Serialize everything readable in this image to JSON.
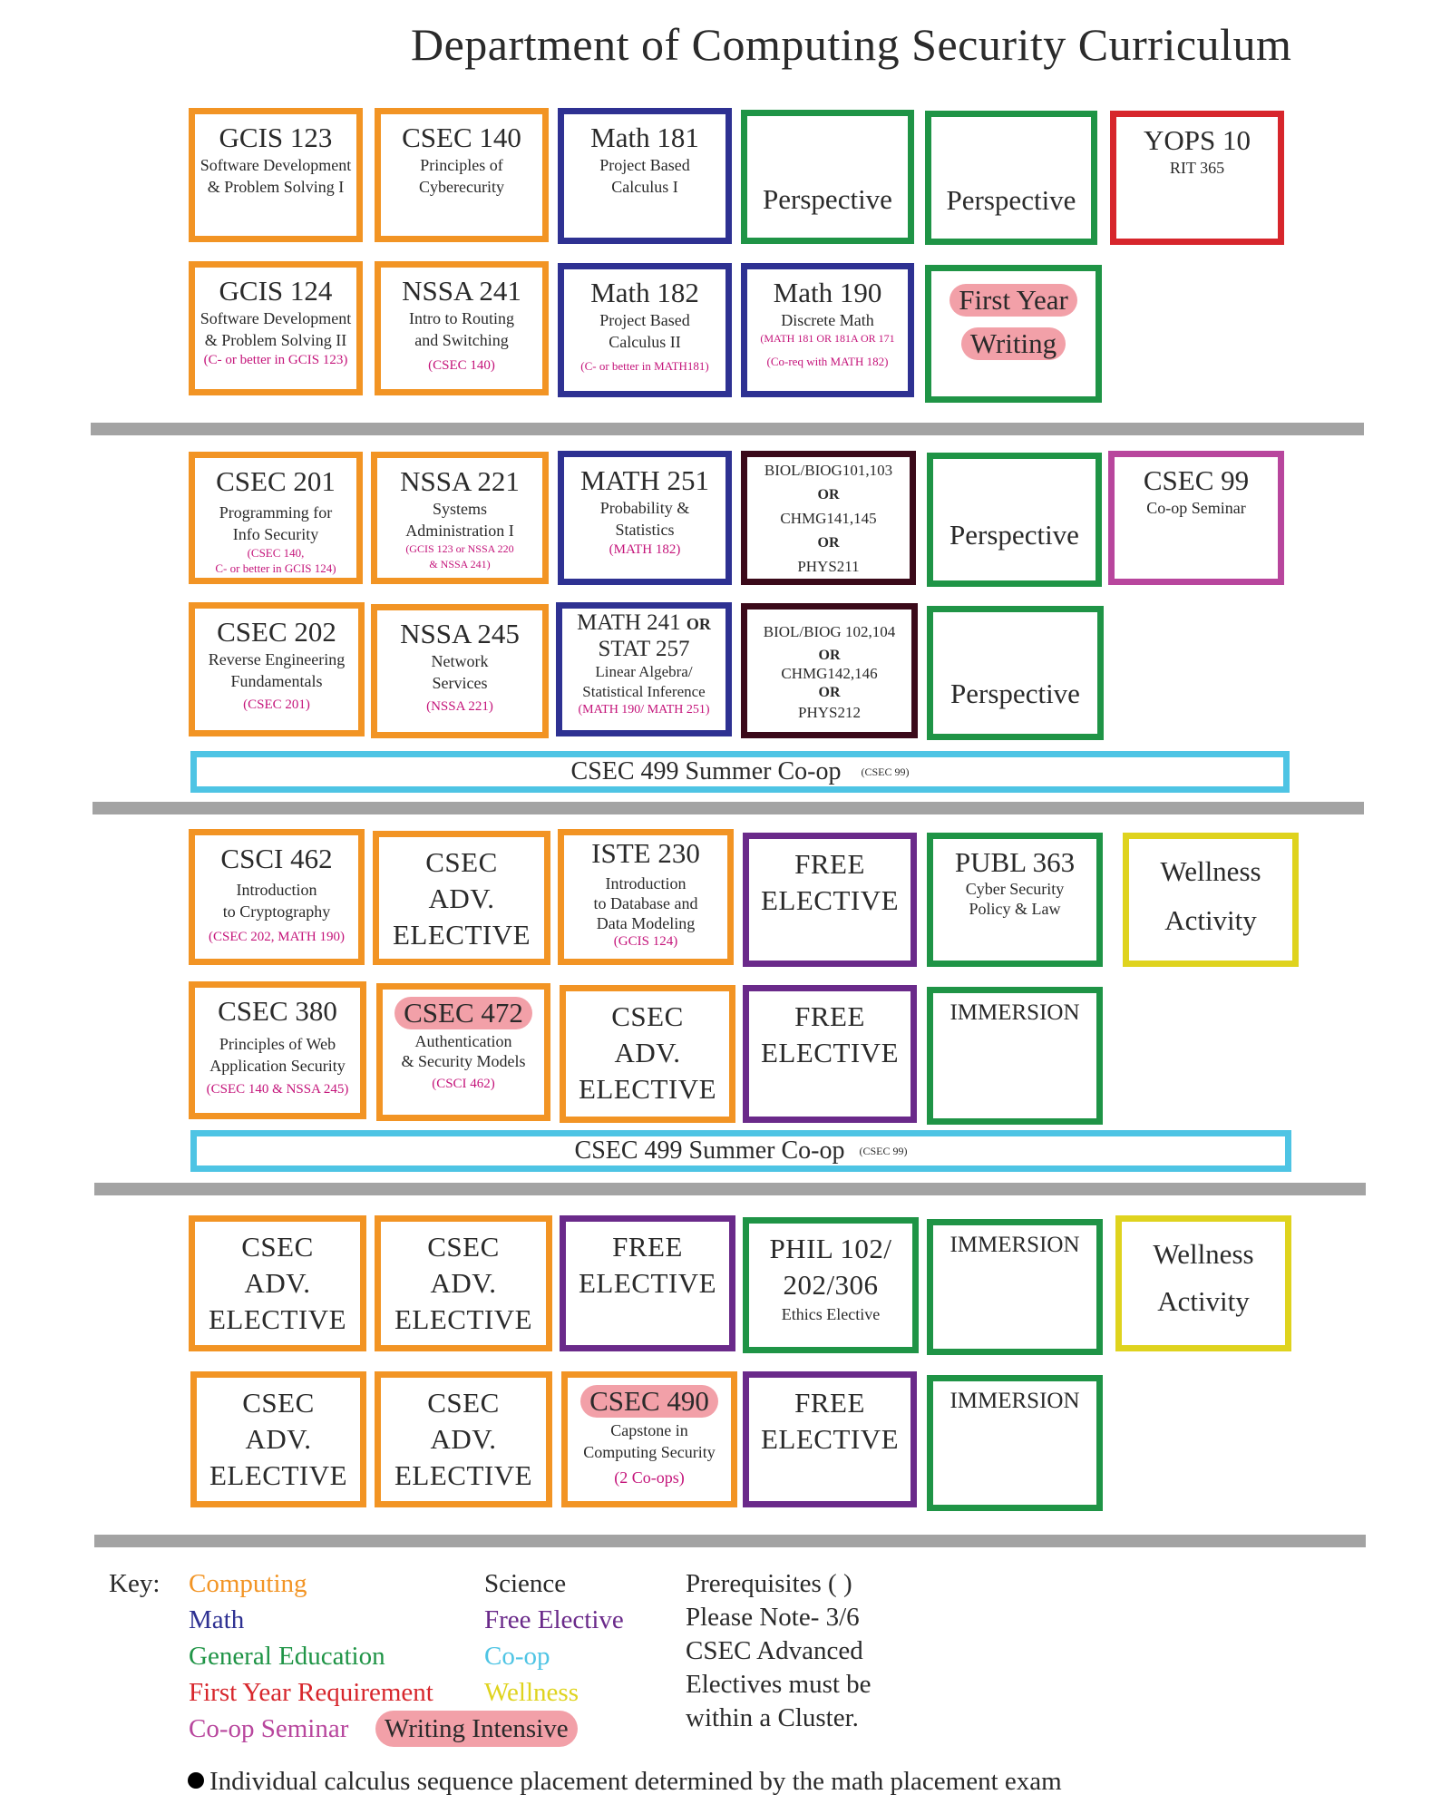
{
  "title": "Department of Computing Security Curriculum",
  "colors": {
    "computing": "#f29424",
    "math": "#2e3192",
    "general_education": "#1f9446",
    "first_year_requirement": "#d7262c",
    "science": "#3b0a1a",
    "free_elective": "#6a2a8a",
    "coop": "#4ec4e4",
    "coop_seminar": "#b8469d",
    "wellness": "#dfd31e",
    "writing_intensive": "#f2a0a8",
    "prerequisite_text": "#c4147a",
    "divider": "#a3a3a3"
  },
  "year1": {
    "gcis123": {
      "code": "GCIS 123",
      "name1": "Software Development",
      "name2": "& Problem Solving I"
    },
    "csec140": {
      "code": "CSEC 140",
      "name1": "Principles of",
      "name2": "Cyberecurity"
    },
    "math181": {
      "code": "Math 181",
      "name1": "Project Based",
      "name2": "Calculus I"
    },
    "perspective_a": "Perspective",
    "perspective_b": "Perspective",
    "yops10": {
      "code": "YOPS 10",
      "name": "RIT 365"
    },
    "gcis124": {
      "code": "GCIS 124",
      "name1": "Software Development",
      "name2": "& Problem Solving II",
      "prereq": "(C- or better in GCIS 123)"
    },
    "nssa241": {
      "code": "NSSA 241",
      "name1": "Intro to Routing",
      "name2": "and Switching",
      "prereq": "(CSEC 140)"
    },
    "math182": {
      "code": "Math 182",
      "name1": "Project Based",
      "name2": "Calculus II",
      "prereq": "(C- or better in MATH181)"
    },
    "math190": {
      "code": "Math 190",
      "name": "Discrete Math",
      "prereq1": "(MATH 181 OR 181A OR 171",
      "prereq2": "(Co-req with MATH 182)"
    },
    "fyw": {
      "line1": "First Year",
      "line2": "Writing"
    }
  },
  "year2": {
    "csec201": {
      "code": "CSEC 201",
      "name1": "Programming for",
      "name2": "Info Security",
      "prereq1": "(CSEC 140,",
      "prereq2": "C- or better in GCIS 124)"
    },
    "nssa221": {
      "code": "NSSA 221",
      "name1": "Systems",
      "name2": "Administration I",
      "prereq1": "(GCIS 123 or NSSA 220",
      "prereq2": "& NSSA 241)"
    },
    "math251": {
      "code": "MATH 251",
      "name1": "Probability &",
      "name2": "Statistics",
      "prereq": "(MATH 182)"
    },
    "sci1": {
      "line1": "BIOL/BIOG101,103",
      "or1": "OR",
      "line2": "CHMG141,145",
      "or2": "OR",
      "line3": "PHYS211"
    },
    "perspective_c": "Perspective",
    "csec99": {
      "code": "CSEC 99",
      "name": "Co-op Seminar"
    },
    "csec202": {
      "code": "CSEC 202",
      "name1": "Reverse Engineering",
      "name2": "Fundamentals",
      "prereq": "(CSEC 201)"
    },
    "nssa245": {
      "code": "NSSA 245",
      "name1": "Network",
      "name2": "Services",
      "prereq": "(NSSA 221)"
    },
    "math241": {
      "code1": "MATH 241",
      "or": "OR",
      "code2": "STAT 257",
      "name1": "Linear Algebra/",
      "name2": "Statistical Inference",
      "prereq": "(MATH 190/ MATH 251)"
    },
    "sci2": {
      "line1": "BIOL/BIOG 102,104",
      "or1": "OR",
      "line2": "CHMG142,146",
      "or2": "OR",
      "line3": "PHYS212"
    },
    "perspective_d": "Perspective",
    "coop": {
      "label": "CSEC 499 Summer Co-op",
      "prereq": "(CSEC 99)"
    }
  },
  "year3": {
    "csci462": {
      "code": "CSCI 462",
      "name1": "Introduction",
      "name2": "to Cryptography",
      "prereq": "(CSEC 202, MATH 190)"
    },
    "adv1": {
      "l1": "CSEC",
      "l2": "ADV.",
      "l3": "ELECTIVE"
    },
    "iste230": {
      "code": "ISTE 230",
      "name1": "Introduction",
      "name2": "to Database and",
      "name3": "Data Modeling",
      "prereq": "(GCIS 124)"
    },
    "free1": {
      "l1": "FREE",
      "l2": "ELECTIVE"
    },
    "publ363": {
      "code": "PUBL 363",
      "name1": "Cyber Security",
      "name2": "Policy & Law"
    },
    "wellness1": {
      "l1": "Wellness",
      "l2": "Activity"
    },
    "csec380": {
      "code": "CSEC 380",
      "name1": "Principles of Web",
      "name2": "Application Security",
      "prereq": "(CSEC 140 & NSSA 245)"
    },
    "csec472": {
      "code": "CSEC 472",
      "name1": "Authentication",
      "name2": "& Security Models",
      "prereq": "(CSCI 462)"
    },
    "adv2": {
      "l1": "CSEC",
      "l2": "ADV.",
      "l3": "ELECTIVE"
    },
    "free2": {
      "l1": "FREE",
      "l2": "ELECTIVE"
    },
    "immersion1": "IMMERSION",
    "coop": {
      "label": "CSEC 499 Summer Co-op",
      "prereq": "(CSEC 99)"
    }
  },
  "year4": {
    "adv1": {
      "l1": "CSEC",
      "l2": "ADV.",
      "l3": "ELECTIVE"
    },
    "adv2": {
      "l1": "CSEC",
      "l2": "ADV.",
      "l3": "ELECTIVE"
    },
    "free1": {
      "l1": "FREE",
      "l2": "ELECTIVE"
    },
    "phil": {
      "line1": "PHIL 102/",
      "line2": "202/306",
      "name": "Ethics Elective"
    },
    "immersion2": "IMMERSION",
    "wellness2": {
      "l1": "Wellness",
      "l2": "Activity"
    },
    "adv3": {
      "l1": "CSEC",
      "l2": "ADV.",
      "l3": "ELECTIVE"
    },
    "adv4": {
      "l1": "CSEC",
      "l2": "ADV.",
      "l3": "ELECTIVE"
    },
    "csec490": {
      "code": "CSEC 490",
      "name1": "Capstone in",
      "name2": "Computing Security",
      "prereq": "(2 Co-ops)"
    },
    "free2": {
      "l1": "FREE",
      "l2": "ELECTIVE"
    },
    "immersion3": "IMMERSION"
  },
  "key": {
    "label": "Key:",
    "computing": "Computing",
    "math": "Math",
    "general_education": "General Education",
    "first_year_requirement": "First Year Requirement",
    "coop_seminar": "Co-op Seminar",
    "science": "Science",
    "free_elective": "Free Elective",
    "coop": "Co-op",
    "wellness": "Wellness",
    "writing_intensive": "Writing Intensive"
  },
  "notes": {
    "line1": "Prerequisites ( )",
    "line2": "Please Note- 3/6",
    "line3": "CSEC Advanced",
    "line4": "Electives must be",
    "line5": "within a Cluster."
  },
  "footnote": "Individual calculus sequence placement determined by the math placement exam"
}
